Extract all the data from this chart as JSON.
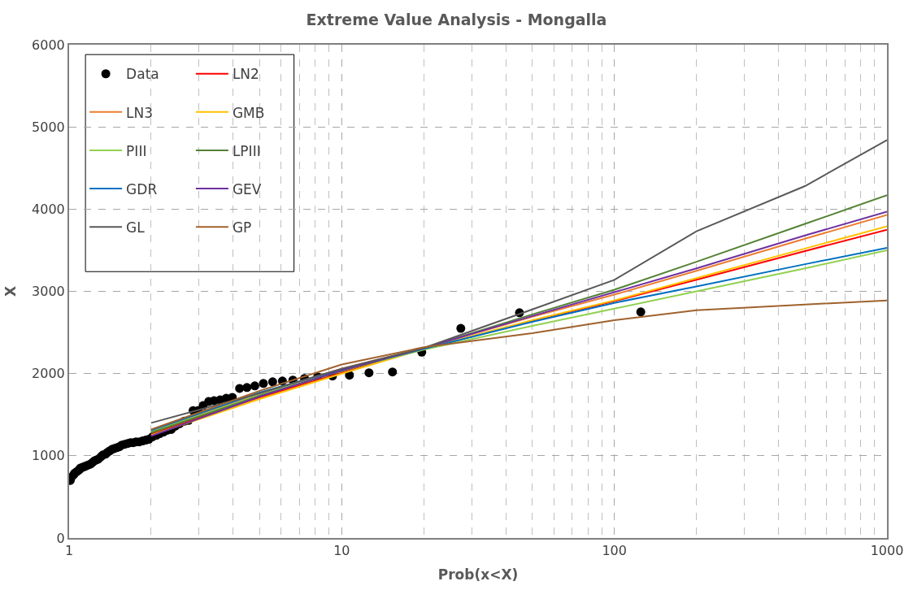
{
  "chart_data": {
    "type": "line",
    "title": "Extreme Value Analysis - Mongalla",
    "xlabel": "Prob(x<X)",
    "ylabel": "X",
    "log": "x",
    "grid": true,
    "legend": "top left",
    "xlim": [
      1,
      1000
    ],
    "xticks": [
      1,
      10,
      100,
      1000
    ],
    "ylim": [
      0,
      6000
    ],
    "yticks": [
      0,
      1000,
      2000,
      3000,
      4000,
      5000,
      6000
    ],
    "x": [
      2,
      5,
      10,
      20,
      50,
      100,
      200,
      500,
      1000
    ],
    "series": [
      {
        "name": "Data",
        "type": "scatter",
        "marker": "circle",
        "color": "#000000",
        "x": [
          125,
          44.87,
          27.34,
          19.66,
          15.35,
          12.59,
          10.67,
          9.25,
          8.16,
          7.3,
          6.62,
          6.06,
          5.58,
          5.16,
          4.8,
          4.49,
          4.22,
          3.97,
          3.77,
          3.58,
          3.4,
          3.25,
          3.1,
          2.97,
          2.85,
          2.74,
          2.64,
          2.54,
          2.45,
          2.37,
          2.29,
          2.22,
          2.15,
          2.09,
          2.02,
          1.96,
          1.91,
          1.86,
          1.81,
          1.76,
          1.72,
          1.68,
          1.64,
          1.6,
          1.56,
          1.53,
          1.5,
          1.47,
          1.44,
          1.41,
          1.38,
          1.36,
          1.33,
          1.31,
          1.28,
          1.26,
          1.24,
          1.22,
          1.2,
          1.18,
          1.16,
          1.14,
          1.12,
          1.1,
          1.09,
          1.07,
          1.05,
          1.04,
          1.02,
          1.01
        ],
        "values": [
          2750,
          2740,
          2550,
          2260,
          2020,
          2010,
          1980,
          1970,
          1960,
          1940,
          1920,
          1910,
          1900,
          1880,
          1850,
          1830,
          1820,
          1710,
          1700,
          1680,
          1670,
          1660,
          1610,
          1550,
          1550,
          1430,
          1420,
          1390,
          1360,
          1320,
          1310,
          1290,
          1270,
          1250,
          1230,
          1200,
          1190,
          1180,
          1170,
          1170,
          1160,
          1160,
          1150,
          1140,
          1130,
          1110,
          1100,
          1090,
          1080,
          1060,
          1040,
          1020,
          1010,
          990,
          960,
          950,
          940,
          920,
          900,
          890,
          880,
          870,
          860,
          850,
          830,
          810,
          790,
          770,
          740,
          700
        ]
      },
      {
        "name": "LN2",
        "color": "#ff0000",
        "values": [
          1270,
          1710,
          2010,
          2300,
          2640,
          2880,
          3140,
          3490,
          3750
        ]
      },
      {
        "name": "LN3",
        "color": "#ed7d31",
        "values": [
          1300,
          1760,
          2060,
          2310,
          2690,
          2960,
          3250,
          3640,
          3930
        ]
      },
      {
        "name": "GMB",
        "color": "#ffc000",
        "values": [
          1250,
          1690,
          2000,
          2300,
          2650,
          2890,
          3160,
          3520,
          3790
        ]
      },
      {
        "name": "PIII",
        "color": "#92d050",
        "values": [
          1290,
          1740,
          2040,
          2290,
          2580,
          2790,
          3000,
          3280,
          3500
        ]
      },
      {
        "name": "LPIII",
        "color": "#548235",
        "values": [
          1280,
          1730,
          2030,
          2310,
          2720,
          3020,
          3360,
          3820,
          4170
        ]
      },
      {
        "name": "GDR",
        "color": "#0070c0",
        "values": [
          1310,
          1770,
          2050,
          2300,
          2630,
          2860,
          3060,
          3330,
          3530
        ]
      },
      {
        "name": "GEV",
        "color": "#7030a0",
        "values": [
          1240,
          1720,
          2040,
          2310,
          2700,
          2990,
          3280,
          3680,
          3970
        ]
      },
      {
        "name": "GL",
        "color": "#595959",
        "values": [
          1400,
          1760,
          2060,
          2310,
          2780,
          3140,
          3730,
          4280,
          4840
        ]
      },
      {
        "name": "GP",
        "color": "#a0622d",
        "values": [
          1320,
          1790,
          2110,
          2320,
          2490,
          2650,
          2770,
          2840,
          2890
        ]
      }
    ]
  }
}
